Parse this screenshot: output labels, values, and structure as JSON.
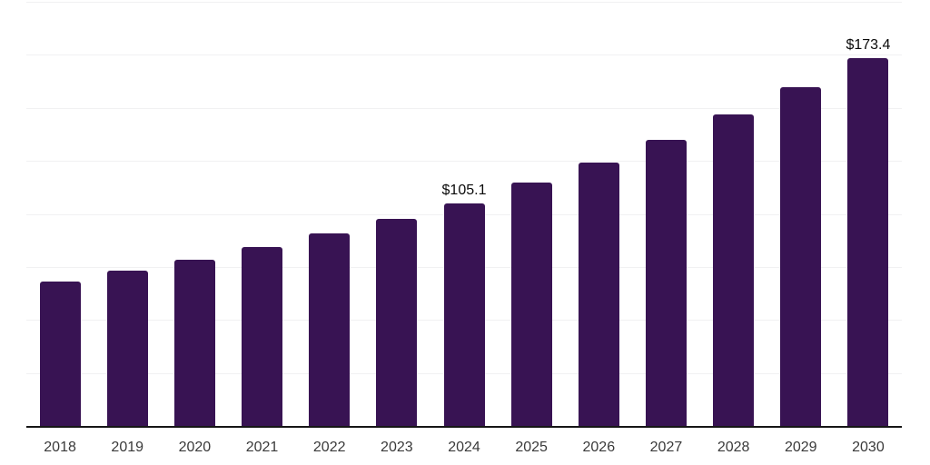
{
  "chart_data": {
    "type": "bar",
    "title": "",
    "xlabel": "",
    "ylabel": "",
    "categories": [
      "2018",
      "2019",
      "2020",
      "2021",
      "2022",
      "2023",
      "2024",
      "2025",
      "2026",
      "2027",
      "2028",
      "2029",
      "2030"
    ],
    "values": [
      68.2,
      73.1,
      78.5,
      84.5,
      90.7,
      97.6,
      105.1,
      114.6,
      124.1,
      135.1,
      147.0,
      159.9,
      173.4
    ],
    "data_labels": {
      "2024": "$105.1",
      "2030": "$173.4"
    },
    "ylim": [
      0,
      200
    ],
    "gridline_step": 25,
    "grid": "horizontal-only",
    "legend": "none",
    "y_axis_labels_visible": false,
    "bar_color": "#381353",
    "axis_line_color": "#161616",
    "gridline_color": "#f1f1f2",
    "value_label_color": "#0a0a0a",
    "tick_label_color": "#3a3a3a",
    "background_color": "#ffffff"
  }
}
